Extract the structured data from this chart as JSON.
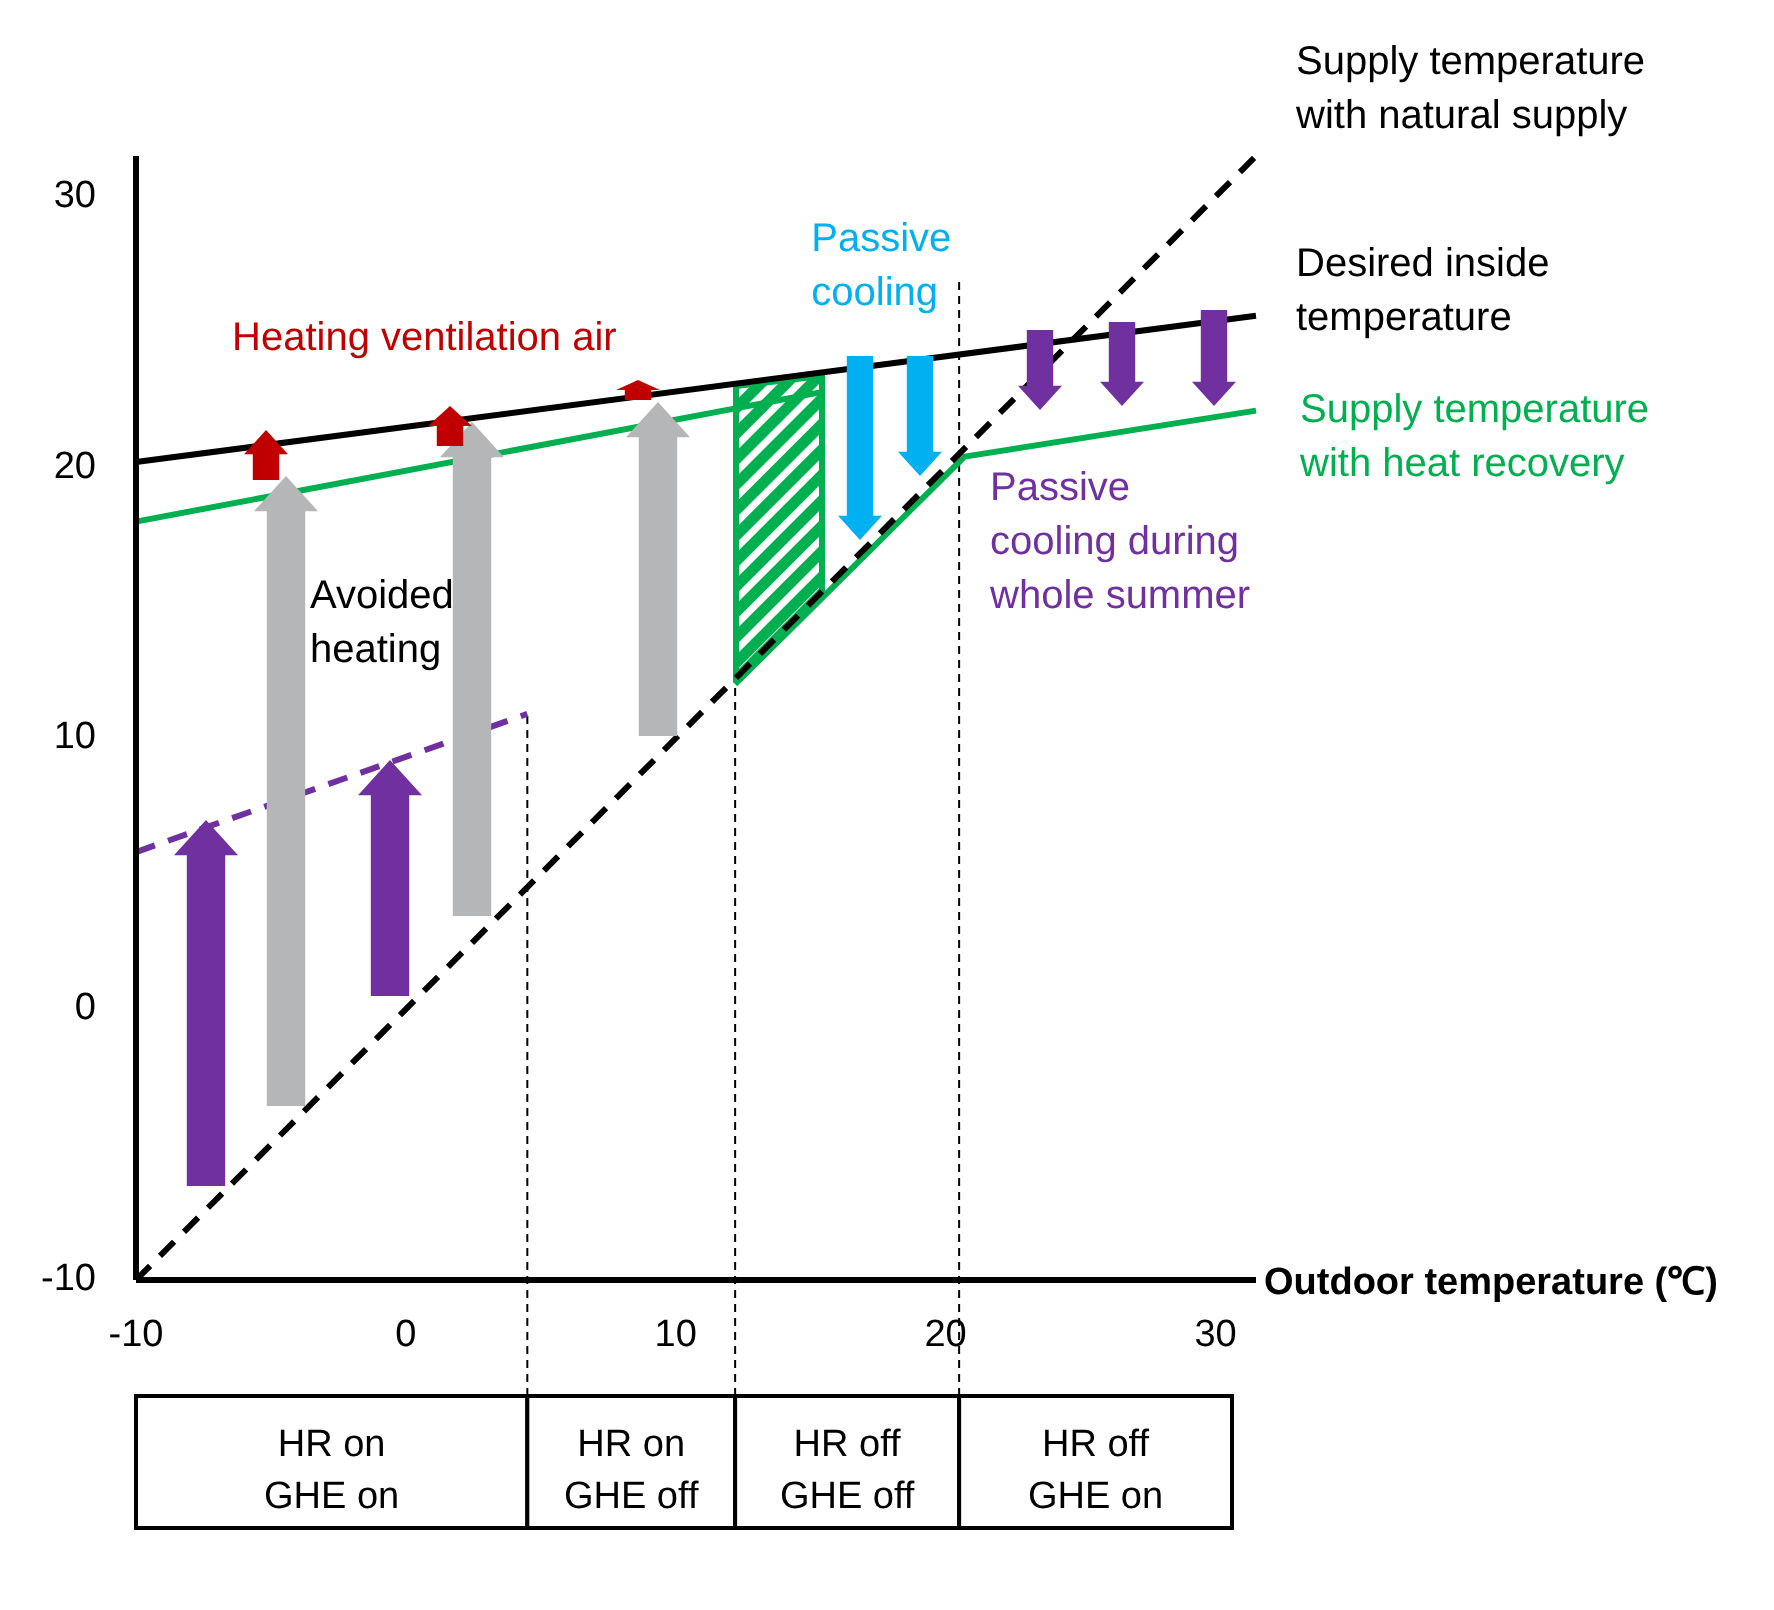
{
  "chart_data": {
    "type": "line",
    "xlabel": "Outdoor temperature (℃)",
    "xlim": [
      -10,
      31.5
    ],
    "ylim": [
      -10,
      31.5
    ],
    "xticks": [
      -10,
      0,
      10,
      20,
      30
    ],
    "yticks": [
      -10,
      0,
      10,
      20,
      30
    ],
    "series": [
      {
        "name": "Desired inside temperature",
        "color": "#000000",
        "x": [
          -10,
          31.5
        ],
        "values": [
          20.2,
          25.6
        ]
      },
      {
        "name": "Supply temperature with heat recovery",
        "color": "#00b050",
        "x": [
          12.2,
          20.7,
          31.5
        ],
        "values": [
          12,
          20.4,
          22.1
        ]
      },
      {
        "color": "#00b050",
        "x": [
          -10,
          15.5
        ],
        "values": [
          18,
          22.8
        ]
      },
      {
        "name": "Supply temperature with natural supply",
        "line_style": "dashed",
        "color": "#000000",
        "x": [
          -10,
          31.5
        ],
        "values": [
          -10,
          31.5
        ]
      },
      {
        "line_style": "dashed",
        "color": "#7030a0",
        "x": [
          -10,
          4.5
        ],
        "values": [
          5.8,
          10.9
        ]
      }
    ],
    "ref_lines": [
      {
        "axis": "x",
        "value": 4.5,
        "line_style": "dashed"
      },
      {
        "axis": "x",
        "value": 12.2,
        "line_style": "dashed"
      },
      {
        "axis": "x",
        "value": 20.5,
        "line_style": "dashed"
      }
    ],
    "annotations": [
      "HR on GHE on",
      "HR on GHE off",
      "HR off GHE off",
      "HR off GHE on",
      "Avoided heating",
      "Heating ventilation air",
      {
        "text": "Passive cooling",
        "x": 16.8,
        "y": 23.7
      },
      "Passive cooling during whole summer"
    ]
  }
}
